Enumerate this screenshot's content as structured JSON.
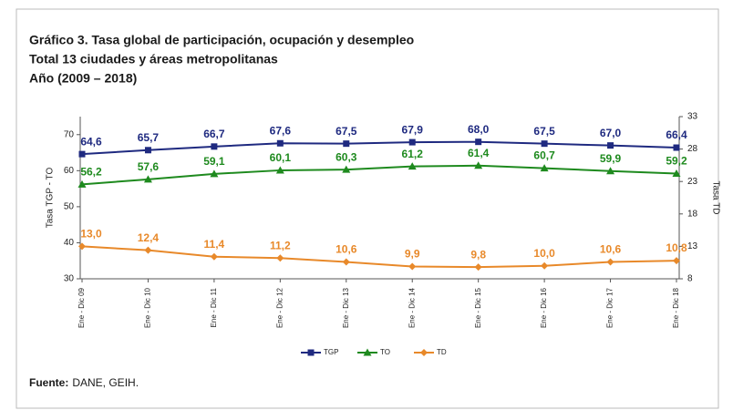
{
  "chart_data": {
    "type": "line",
    "title_lines": [
      "Gráfico 3. Tasa global de participación, ocupación y desempleo",
      "Total 13 ciudades y áreas metropolitanas",
      "Año (2009 – 2018)"
    ],
    "ylabel": "Tasa TGP - TO",
    "y2label": "Tasa TD",
    "categories": [
      "Ene - Dic 09",
      "Ene - Dic 10",
      "Ene - Dic 11",
      "Ene - Dic 12",
      "Ene - Dic 13",
      "Ene - Dic 14",
      "Ene - Dic 15",
      "Ene - Dic 16",
      "Ene - Dic 17",
      "Ene - Dic 18"
    ],
    "series": [
      {
        "name": "TGP",
        "color": "#1f2a80",
        "marker": "square",
        "values": [
          64.6,
          65.7,
          66.7,
          67.6,
          67.5,
          67.9,
          68.0,
          67.5,
          67.0,
          66.4
        ],
        "value_labels": [
          "64,6",
          "65,7",
          "66,7",
          "67,6",
          "67,5",
          "67,9",
          "68,0",
          "67,5",
          "67,0",
          "66,4"
        ]
      },
      {
        "name": "TO",
        "color": "#1e8a1e",
        "marker": "triangle",
        "values": [
          56.2,
          57.6,
          59.1,
          60.1,
          60.3,
          61.2,
          61.4,
          60.7,
          59.9,
          59.2
        ],
        "value_labels": [
          "56,2",
          "57,6",
          "59,1",
          "60,1",
          "60,3",
          "61,2",
          "61,4",
          "60,7",
          "59,9",
          "59,2"
        ]
      },
      {
        "name": "TD",
        "color": "#e8892a",
        "marker": "diamond",
        "axis": "y2",
        "values": [
          13.0,
          12.4,
          11.4,
          11.2,
          10.6,
          9.9,
          9.8,
          10.0,
          10.6,
          10.8
        ],
        "value_labels": [
          "13,0",
          "12,4",
          "11,4",
          "11,2",
          "10,6",
          "9,9",
          "9,8",
          "10,0",
          "10,6",
          "10,8"
        ]
      }
    ],
    "ylim": [
      30,
      75
    ],
    "yticks": [
      30,
      40,
      50,
      60,
      70
    ],
    "y2lim": [
      8,
      33
    ],
    "y2ticks": [
      8,
      13,
      18,
      23,
      28,
      33
    ],
    "legend": "bottom",
    "source_label": "Fuente:",
    "source": "DANE, GEIH."
  }
}
